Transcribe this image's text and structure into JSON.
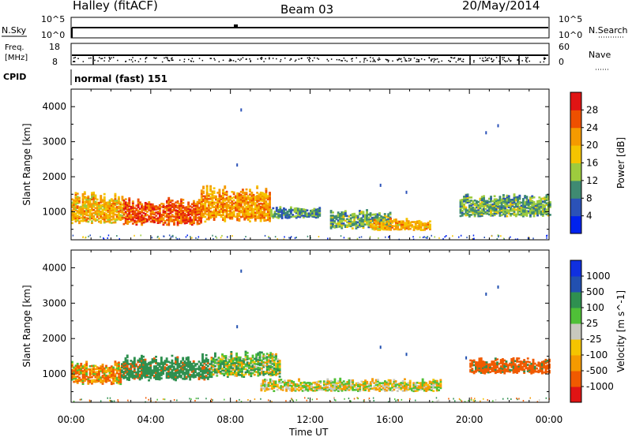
{
  "header": {
    "station": "Halley (fitACF)",
    "beam": "Beam 03",
    "date": "20/May/2014"
  },
  "top_panels": {
    "nsky": {
      "label": "N.Sky",
      "tick_top": "10^5",
      "tick_bottom": "10^0"
    },
    "nsearch": {
      "label": "N.Search",
      "tick_top": "10^5",
      "tick_bottom": "10^0"
    },
    "freq": {
      "label_line1": "Freq.",
      "label_line2": "[MHz]",
      "tick_top": "18",
      "tick_bottom": "8"
    },
    "nave": {
      "label": "Nave",
      "tick_top": "60",
      "tick_bottom": "0"
    },
    "cpid": {
      "label": "CPID",
      "value": "normal (fast) 151"
    }
  },
  "colors": {
    "power": [
      "#0022ee",
      "#2b52b8",
      "#3f8a72",
      "#9dcb3e",
      "#f5c400",
      "#f59a00",
      "#ee5000",
      "#e01414"
    ],
    "velocity": [
      "#e01414",
      "#f05a00",
      "#f59a00",
      "#f5c400",
      "#c8c8be",
      "#4fc037",
      "#2f9050",
      "#2250b0",
      "#1030e0"
    ],
    "ground_scatter": "#c8c8be"
  },
  "chart_data": [
    {
      "type": "heatmap",
      "name": "power",
      "ylabel": "Slant Range [km]",
      "yticks": [
        "4000",
        "3000",
        "2000",
        "1000"
      ],
      "ylim": [
        200,
        4500
      ],
      "colorbar_label": "Power [dB]",
      "colorbar_ticks": [
        "28",
        "24",
        "20",
        "16",
        "12",
        "8",
        "4"
      ],
      "clim": [
        0,
        32
      ],
      "echo_bands": [
        {
          "t0": 0.0,
          "t1": 2.6,
          "r_low": 650,
          "r_high": 1550,
          "value": 20
        },
        {
          "t0": 2.6,
          "t1": 6.5,
          "r_low": 600,
          "r_high": 1400,
          "value": 26
        },
        {
          "t0": 6.5,
          "t1": 10.0,
          "r_low": 700,
          "r_high": 1750,
          "value": 22
        },
        {
          "t0": 10.0,
          "t1": 12.5,
          "r_low": 800,
          "r_high": 1150,
          "value": 10
        },
        {
          "t0": 13.0,
          "t1": 16.0,
          "r_low": 500,
          "r_high": 1050,
          "value": 12
        },
        {
          "t0": 15.0,
          "t1": 18.0,
          "r_low": 450,
          "r_high": 800,
          "value": 20
        },
        {
          "t0": 19.5,
          "t1": 24.0,
          "r_low": 850,
          "r_high": 1500,
          "value": 12
        }
      ]
    },
    {
      "type": "heatmap",
      "name": "velocity",
      "ylabel": "Slant Range [km]",
      "yticks": [
        "4000",
        "3000",
        "2000",
        "1000"
      ],
      "ylim": [
        200,
        4500
      ],
      "colorbar_label": "Velocity [m s^-1]",
      "colorbar_ticks": [
        "1000",
        "500",
        "100",
        "25",
        "-25",
        "-100",
        "-500",
        "-1000"
      ],
      "echo_bands": [
        {
          "t0": 0.0,
          "t1": 2.5,
          "r_low": 700,
          "r_high": 1350,
          "value": -100
        },
        {
          "t0": 2.5,
          "t1": 7.0,
          "r_low": 800,
          "r_high": 1550,
          "value": 300
        },
        {
          "t0": 7.0,
          "t1": 10.5,
          "r_low": 900,
          "r_high": 1650,
          "value": 80
        },
        {
          "t0": 9.5,
          "t1": 18.5,
          "r_low": 500,
          "r_high": 850,
          "value": 0
        },
        {
          "t0": 20.0,
          "t1": 24.0,
          "r_low": 1000,
          "r_high": 1450,
          "value": -300
        }
      ],
      "xlabel": "Time UT",
      "xticks": [
        "00:00",
        "04:00",
        "08:00",
        "12:00",
        "16:00",
        "20:00",
        "00:00"
      ],
      "xlim": [
        0,
        24
      ]
    }
  ]
}
